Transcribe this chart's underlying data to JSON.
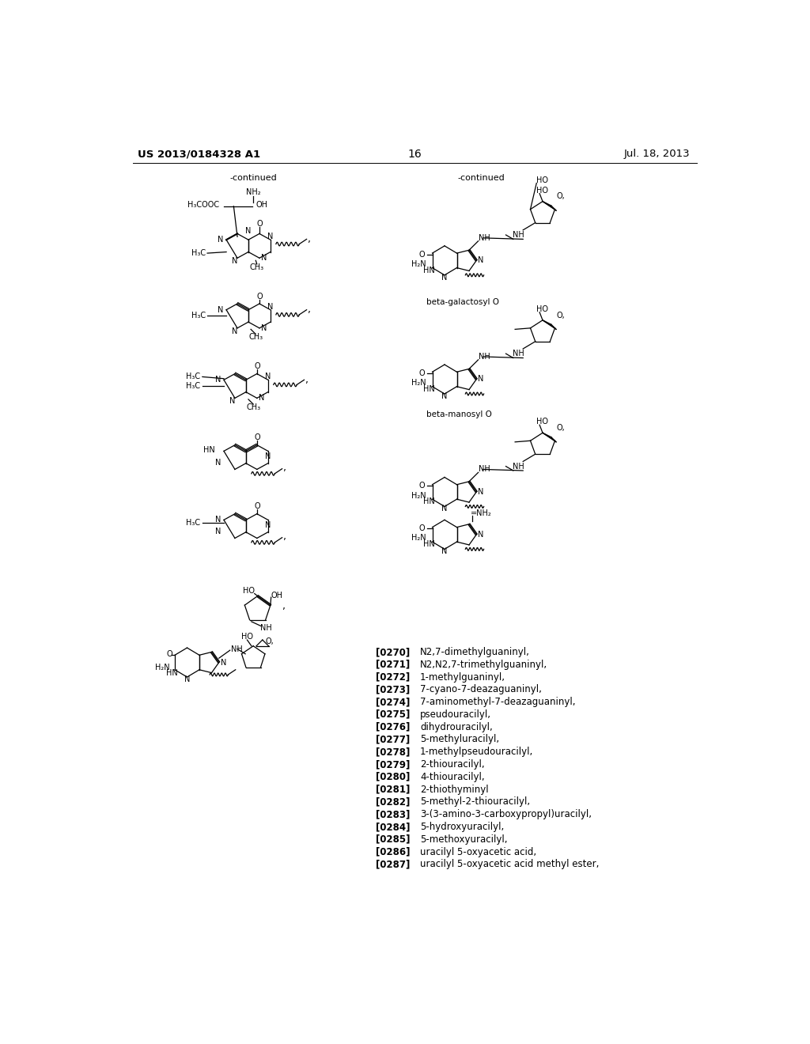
{
  "page_header_left": "US 2013/0184328 A1",
  "page_header_right": "Jul. 18, 2013",
  "page_number": "16",
  "background_color": "#ffffff",
  "text_color": "#000000",
  "references": [
    {
      "num": "[0270]",
      "text": "N2,7-dimethylguaninyl,"
    },
    {
      "num": "[0271]",
      "text": "N2,N2,7-trimethylguaninyl,"
    },
    {
      "num": "[0272]",
      "text": "1-methylguaninyl,"
    },
    {
      "num": "[0273]",
      "text": "7-cyano-7-deazaguaninyl,"
    },
    {
      "num": "[0274]",
      "text": "7-aminomethyl-7-deazaguaninyl,"
    },
    {
      "num": "[0275]",
      "text": "pseudouracilyl,"
    },
    {
      "num": "[0276]",
      "text": "dihydrouracilyl,"
    },
    {
      "num": "[0277]",
      "text": "5-methyluracilyl,"
    },
    {
      "num": "[0278]",
      "text": "1-methylpseudouracilyl,"
    },
    {
      "num": "[0279]",
      "text": "2-thiouracilyl,"
    },
    {
      "num": "[0280]",
      "text": "4-thiouracilyl,"
    },
    {
      "num": "[0281]",
      "text": "2-thiothyminyl"
    },
    {
      "num": "[0282]",
      "text": "5-methyl-2-thiouracilyl,"
    },
    {
      "num": "[0283]",
      "text": "3-(3-amino-3-carboxypropyl)uracilyl,"
    },
    {
      "num": "[0284]",
      "text": "5-hydroxyuracilyl,"
    },
    {
      "num": "[0285]",
      "text": "5-methoxyuracilyl,"
    },
    {
      "num": "[0286]",
      "text": "uracilyl 5-oxyacetic acid,"
    },
    {
      "num": "[0287]",
      "text": "uracilyl 5-oxyacetic acid methyl ester,"
    }
  ]
}
